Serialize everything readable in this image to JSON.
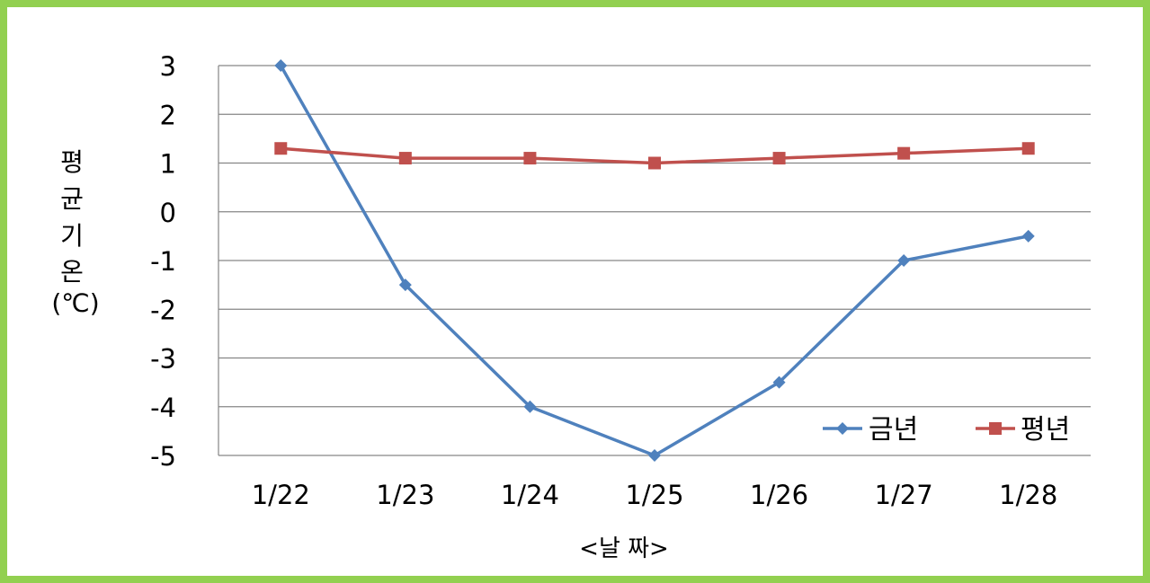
{
  "chart_data": {
    "type": "line",
    "categories": [
      "1/22",
      "1/23",
      "1/24",
      "1/25",
      "1/26",
      "1/27",
      "1/28"
    ],
    "series": [
      {
        "name": "금년",
        "color": "#4f81bd",
        "marker": "diamond",
        "values": [
          3,
          -1.5,
          -4,
          -5,
          -3.5,
          -1,
          -0.5
        ]
      },
      {
        "name": "평년",
        "color": "#c0504d",
        "marker": "square",
        "values": [
          1.3,
          1.1,
          1.1,
          1.0,
          1.1,
          1.2,
          1.3
        ]
      }
    ],
    "xlabel": "<날 짜>",
    "ylabel_lines": [
      "평",
      "균",
      "기",
      "온",
      "(℃)"
    ],
    "ylim": [
      -5,
      3
    ],
    "yticks": [
      3,
      2,
      1,
      0,
      -1,
      -2,
      -3,
      -4,
      -5
    ],
    "grid": true,
    "legend_position": "bottom-right",
    "border_color": "#92d050"
  }
}
